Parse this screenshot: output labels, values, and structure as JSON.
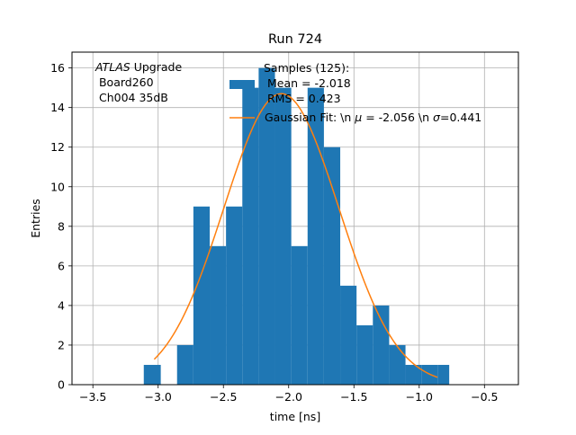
{
  "chart_data": {
    "type": "bar",
    "title": "Run 724",
    "xlabel": "time [ns]",
    "ylabel": "Entries",
    "xlim": [
      -3.66,
      -0.24
    ],
    "ylim": [
      0,
      16.8
    ],
    "grid": true,
    "xticks": [
      -3.5,
      -3.0,
      -2.5,
      -2.0,
      -1.5,
      -1.0,
      -0.5
    ],
    "xtick_labels": [
      "−3.5",
      "−3.0",
      "−2.5",
      "−2.0",
      "−1.5",
      "−1.0",
      "−0.5"
    ],
    "yticks": [
      0,
      2,
      4,
      6,
      8,
      10,
      12,
      14,
      16
    ],
    "ytick_labels": [
      "0",
      "2",
      "4",
      "6",
      "8",
      "10",
      "12",
      "14",
      "16"
    ],
    "histogram": {
      "bin_edges": [
        -3.11,
        -2.98,
        -2.855,
        -2.73,
        -2.605,
        -2.48,
        -2.355,
        -2.23,
        -2.105,
        -1.98,
        -1.855,
        -1.73,
        -1.605,
        -1.48,
        -1.355,
        -1.23,
        -1.105,
        -0.98,
        -0.855,
        -0.77
      ],
      "counts": [
        1,
        0,
        2,
        9,
        7,
        9,
        15,
        16,
        15,
        7,
        15,
        12,
        5,
        3,
        4,
        2,
        1,
        1,
        1
      ],
      "color": "#1f77b4"
    },
    "fit": {
      "mu": -2.056,
      "sigma": 0.441,
      "amplitude": 14.7,
      "x_range": [
        -3.03,
        -0.86
      ],
      "color": "#ff7f0e"
    },
    "annotation_atlas": {
      "italic": "ATLAS",
      "rest": " Upgrade",
      "line2": " Board260",
      "line3": " Ch004 35dB"
    },
    "legend": {
      "location": "top-right",
      "samples_line1": "Samples (125):",
      "samples_line2": " Mean = -2.018",
      "samples_line3": " RMS = 0.423",
      "fit_prefix": "Gaussian Fit: \\n ",
      "fit_mu_symbol": "μ",
      "fit_mid": " = -2.056 \\n ",
      "fit_sigma_symbol": "σ",
      "fit_suffix": "=0.441"
    }
  }
}
